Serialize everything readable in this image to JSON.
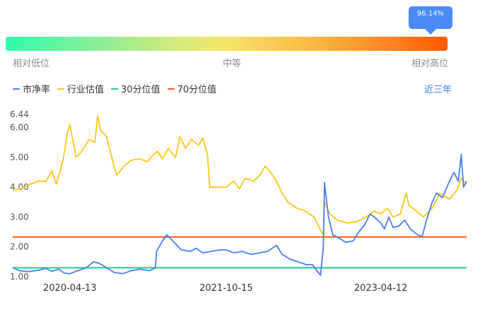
{
  "gauge": {
    "percentile_label": "96.14%",
    "percentile": 0.9614,
    "label_low": "相对低位",
    "label_mid": "中等",
    "label_high": "相对高位"
  },
  "legend": {
    "pb": "市净率",
    "industry": "行业估值",
    "p30": "30分位值",
    "p70": "70分位值"
  },
  "range_button": "近三年",
  "colors": {
    "pb": "#4a7ef0",
    "industry": "#f6c81a",
    "p30": "#22cc88",
    "p70": "#ff5a1e",
    "accent": "#3b7ae8"
  },
  "chart_data": {
    "type": "line",
    "y_ticks": [
      "1.00",
      "2.00",
      "3.00",
      "4.00",
      "5.00",
      "6.00"
    ],
    "y_max_label": "6.44",
    "ylim": [
      1.0,
      6.44
    ],
    "x_ticks": [
      "2020-04-13",
      "2021-10-15",
      "2023-04-12"
    ],
    "x_range": [
      "2019-09-25",
      "2024-02-08"
    ],
    "reference_lines": [
      {
        "name": "30分位值",
        "value": 1.3
      },
      {
        "name": "70分位值",
        "value": 2.33
      }
    ],
    "series": [
      {
        "name": "市净率",
        "points": [
          [
            "2019-09-25",
            1.3
          ],
          [
            "2019-10-20",
            1.2
          ],
          [
            "2019-11-20",
            1.17
          ],
          [
            "2019-12-25",
            1.22
          ],
          [
            "2020-01-20",
            1.28
          ],
          [
            "2020-02-10",
            1.18
          ],
          [
            "2020-03-05",
            1.25
          ],
          [
            "2020-03-25",
            1.12
          ],
          [
            "2020-04-13",
            1.1
          ],
          [
            "2020-05-10",
            1.2
          ],
          [
            "2020-06-10",
            1.3
          ],
          [
            "2020-07-05",
            1.5
          ],
          [
            "2020-07-25",
            1.45
          ],
          [
            "2020-08-20",
            1.3
          ],
          [
            "2020-09-15",
            1.15
          ],
          [
            "2020-10-15",
            1.1
          ],
          [
            "2020-11-15",
            1.2
          ],
          [
            "2020-12-15",
            1.25
          ],
          [
            "2021-01-20",
            1.2
          ],
          [
            "2021-02-08",
            1.3
          ],
          [
            "2021-02-12",
            1.85
          ],
          [
            "2021-03-05",
            2.2
          ],
          [
            "2021-03-20",
            2.4
          ],
          [
            "2021-04-10",
            2.2
          ],
          [
            "2021-05-10",
            1.9
          ],
          [
            "2021-06-10",
            1.85
          ],
          [
            "2021-07-01",
            1.95
          ],
          [
            "2021-07-25",
            1.8
          ],
          [
            "2021-08-25",
            1.85
          ],
          [
            "2021-09-25",
            1.9
          ],
          [
            "2021-10-15",
            1.9
          ],
          [
            "2021-11-10",
            1.8
          ],
          [
            "2021-12-10",
            1.85
          ],
          [
            "2022-01-10",
            1.75
          ],
          [
            "2022-02-10",
            1.8
          ],
          [
            "2022-03-10",
            1.85
          ],
          [
            "2022-04-10",
            2.05
          ],
          [
            "2022-04-30",
            1.75
          ],
          [
            "2022-05-25",
            1.6
          ],
          [
            "2022-06-25",
            1.5
          ],
          [
            "2022-07-25",
            1.4
          ],
          [
            "2022-08-15",
            1.4
          ],
          [
            "2022-08-30",
            1.2
          ],
          [
            "2022-09-12",
            1.05
          ],
          [
            "2022-09-22",
            2.0
          ],
          [
            "2022-09-26",
            4.15
          ],
          [
            "2022-10-10",
            3.0
          ],
          [
            "2022-10-25",
            2.4
          ],
          [
            "2022-11-15",
            2.3
          ],
          [
            "2022-12-10",
            2.15
          ],
          [
            "2023-01-05",
            2.2
          ],
          [
            "2023-01-25",
            2.5
          ],
          [
            "2023-02-15",
            2.75
          ],
          [
            "2023-03-05",
            3.1
          ],
          [
            "2023-03-20",
            3.0
          ],
          [
            "2023-04-12",
            2.8
          ],
          [
            "2023-04-25",
            2.6
          ],
          [
            "2023-05-10",
            3.0
          ],
          [
            "2023-05-25",
            2.65
          ],
          [
            "2023-06-15",
            2.7
          ],
          [
            "2023-07-05",
            2.9
          ],
          [
            "2023-07-25",
            2.6
          ],
          [
            "2023-08-20",
            2.4
          ],
          [
            "2023-09-05",
            2.35
          ],
          [
            "2023-09-20",
            2.9
          ],
          [
            "2023-10-10",
            3.5
          ],
          [
            "2023-10-25",
            3.8
          ],
          [
            "2023-11-15",
            3.65
          ],
          [
            "2023-12-05",
            4.1
          ],
          [
            "2023-12-25",
            4.5
          ],
          [
            "2024-01-10",
            4.2
          ],
          [
            "2024-01-20",
            5.1
          ],
          [
            "2024-01-28",
            4.0
          ],
          [
            "2024-02-08",
            4.2
          ]
        ]
      },
      {
        "name": "行业估值",
        "points": [
          [
            "2019-09-25",
            3.9
          ],
          [
            "2019-10-25",
            3.95
          ],
          [
            "2019-11-25",
            4.1
          ],
          [
            "2019-12-25",
            4.2
          ],
          [
            "2020-01-20",
            4.2
          ],
          [
            "2020-02-10",
            4.55
          ],
          [
            "2020-02-25",
            4.1
          ],
          [
            "2020-03-20",
            4.9
          ],
          [
            "2020-04-05",
            5.85
          ],
          [
            "2020-04-13",
            6.1
          ],
          [
            "2020-05-05",
            5.0
          ],
          [
            "2020-05-25",
            5.2
          ],
          [
            "2020-06-20",
            5.6
          ],
          [
            "2020-07-10",
            5.5
          ],
          [
            "2020-07-20",
            6.4
          ],
          [
            "2020-07-30",
            5.9
          ],
          [
            "2020-08-20",
            5.7
          ],
          [
            "2020-09-10",
            4.9
          ],
          [
            "2020-09-25",
            4.4
          ],
          [
            "2020-10-20",
            4.7
          ],
          [
            "2020-11-15",
            4.9
          ],
          [
            "2020-12-15",
            4.95
          ],
          [
            "2021-01-10",
            4.85
          ],
          [
            "2021-02-01",
            5.1
          ],
          [
            "2021-02-15",
            5.2
          ],
          [
            "2021-03-05",
            4.95
          ],
          [
            "2021-03-25",
            5.3
          ],
          [
            "2021-04-20",
            5.0
          ],
          [
            "2021-05-05",
            5.7
          ],
          [
            "2021-05-25",
            5.3
          ],
          [
            "2021-06-15",
            5.6
          ],
          [
            "2021-07-10",
            5.4
          ],
          [
            "2021-07-25",
            5.65
          ],
          [
            "2021-08-10",
            5.1
          ],
          [
            "2021-08-18",
            4.0
          ],
          [
            "2021-09-10",
            4.0
          ],
          [
            "2021-10-15",
            4.0
          ],
          [
            "2021-11-10",
            4.2
          ],
          [
            "2021-12-01",
            3.95
          ],
          [
            "2021-12-20",
            4.3
          ],
          [
            "2022-01-20",
            4.2
          ],
          [
            "2022-02-10",
            4.4
          ],
          [
            "2022-03-01",
            4.7
          ],
          [
            "2022-03-20",
            4.5
          ],
          [
            "2022-04-10",
            4.2
          ],
          [
            "2022-04-30",
            3.8
          ],
          [
            "2022-05-20",
            3.5
          ],
          [
            "2022-06-20",
            3.3
          ],
          [
            "2022-07-20",
            3.2
          ],
          [
            "2022-08-20",
            3.0
          ],
          [
            "2022-09-10",
            2.6
          ],
          [
            "2022-09-22",
            2.4
          ],
          [
            "2022-09-26",
            3.5
          ],
          [
            "2022-10-15",
            3.1
          ],
          [
            "2022-11-10",
            2.9
          ],
          [
            "2022-12-15",
            2.8
          ],
          [
            "2023-01-20",
            2.85
          ],
          [
            "2023-02-20",
            3.0
          ],
          [
            "2023-03-20",
            3.2
          ],
          [
            "2023-04-12",
            3.1
          ],
          [
            "2023-05-05",
            3.3
          ],
          [
            "2023-05-25",
            3.0
          ],
          [
            "2023-06-20",
            3.1
          ],
          [
            "2023-07-10",
            3.8
          ],
          [
            "2023-07-20",
            3.4
          ],
          [
            "2023-08-15",
            3.2
          ],
          [
            "2023-09-10",
            3.0
          ],
          [
            "2023-10-10",
            3.3
          ],
          [
            "2023-11-05",
            3.8
          ],
          [
            "2023-12-10",
            3.6
          ],
          [
            "2024-01-05",
            3.9
          ],
          [
            "2024-01-20",
            4.3
          ],
          [
            "2024-02-08",
            4.1
          ]
        ]
      }
    ]
  }
}
